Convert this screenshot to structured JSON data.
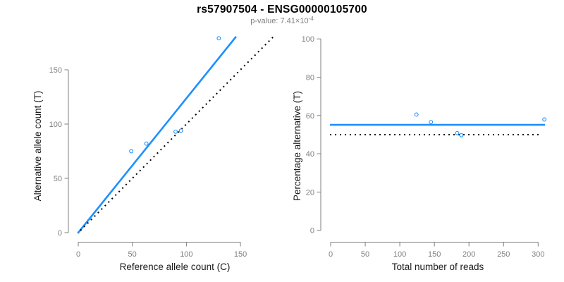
{
  "title": "rs57907504 - ENSG00000105700",
  "subtitle": {
    "prefix": "p-value: ",
    "mantissa": "7.41",
    "times_base": "×10",
    "exponent": "-4"
  },
  "colors": {
    "accent_blue": "#1E90FF",
    "dotted_black": "#000000",
    "axis_gray": "#7f7f7f",
    "label_black": "#1a1a1a"
  },
  "chart_data": [
    {
      "type": "scatter",
      "name": "allele-count-scatter",
      "xlabel": "Reference allele count (C)",
      "ylabel": "Alternative allele count (T)",
      "xticks": [
        0,
        50,
        100,
        150
      ],
      "yticks": [
        0,
        50,
        100,
        150
      ],
      "xlim": [
        0,
        183
      ],
      "ylim": [
        0,
        184
      ],
      "grid": false,
      "legend": "none",
      "marker": "open-circle",
      "points": [
        {
          "x": 49,
          "y": 75
        },
        {
          "x": 63,
          "y": 82
        },
        {
          "x": 90,
          "y": 93
        },
        {
          "x": 95,
          "y": 94
        },
        {
          "x": 130,
          "y": 179
        }
      ],
      "lines": [
        {
          "name": "regression-line",
          "style": "solid",
          "color_key": "accent_blue",
          "slope": 1.237,
          "intercept": 0,
          "x_range": [
            -0.5,
            146
          ]
        },
        {
          "name": "identity-line",
          "style": "dotted",
          "color_key": "dotted_black",
          "slope": 1,
          "intercept": 0,
          "x_range": [
            2,
            181
          ]
        }
      ]
    },
    {
      "type": "scatter",
      "name": "percentage-scatter",
      "xlabel": "Total number of reads",
      "ylabel": "Percentage alternative (T)",
      "xticks": [
        0,
        50,
        100,
        150,
        200,
        250,
        300
      ],
      "yticks": [
        0,
        20,
        40,
        60,
        80,
        100
      ],
      "xlim": [
        0,
        319
      ],
      "ylim": [
        0,
        100
      ],
      "grid": false,
      "legend": "none",
      "marker": "open-circle",
      "points": [
        {
          "x": 124,
          "y": 60.5
        },
        {
          "x": 145,
          "y": 56.6
        },
        {
          "x": 183,
          "y": 50.8
        },
        {
          "x": 189,
          "y": 49.7
        },
        {
          "x": 309,
          "y": 57.9
        }
      ],
      "lines": [
        {
          "name": "mean-percentage-line",
          "style": "solid",
          "color_key": "accent_blue",
          "slope": 0,
          "intercept": 55.1,
          "x_range": [
            -1,
            310
          ]
        },
        {
          "name": "null-50pct-line",
          "style": "dotted",
          "color_key": "dotted_black",
          "slope": 0,
          "intercept": 50,
          "x_range": [
            -1,
            305
          ]
        }
      ]
    }
  ]
}
